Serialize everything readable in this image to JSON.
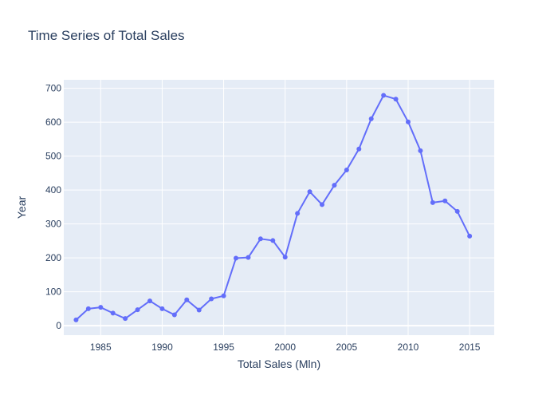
{
  "chart_data": {
    "type": "line",
    "title": "Time Series of Total Sales",
    "xlabel": "Total Sales (Mln)",
    "ylabel": "Year",
    "xlim": [
      1982,
      2017
    ],
    "ylim": [
      -28,
      725
    ],
    "x_ticks": [
      "1985",
      "1990",
      "1995",
      "2000",
      "2005",
      "2010",
      "2015"
    ],
    "y_ticks": [
      "0",
      "100",
      "200",
      "300",
      "400",
      "500",
      "600",
      "700"
    ],
    "grid": true,
    "legend": "none",
    "series": [
      {
        "mode": "lines+markers",
        "color": "#636efa",
        "x": [
          1983,
          1984,
          1985,
          1986,
          1987,
          1988,
          1989,
          1990,
          1991,
          1992,
          1993,
          1994,
          1995,
          1996,
          1997,
          1998,
          1999,
          2000,
          2001,
          2002,
          2003,
          2004,
          2005,
          2006,
          2007,
          2008,
          2009,
          2010,
          2011,
          2012,
          2013,
          2014,
          2015
        ],
        "y": [
          17,
          50,
          54,
          37,
          21,
          47,
          73,
          50,
          32,
          76,
          46,
          79,
          88,
          199,
          201,
          256,
          251,
          202,
          331,
          395,
          357,
          414,
          459,
          521,
          610,
          679,
          668,
          601,
          516,
          363,
          368,
          337,
          264
        ]
      }
    ]
  }
}
